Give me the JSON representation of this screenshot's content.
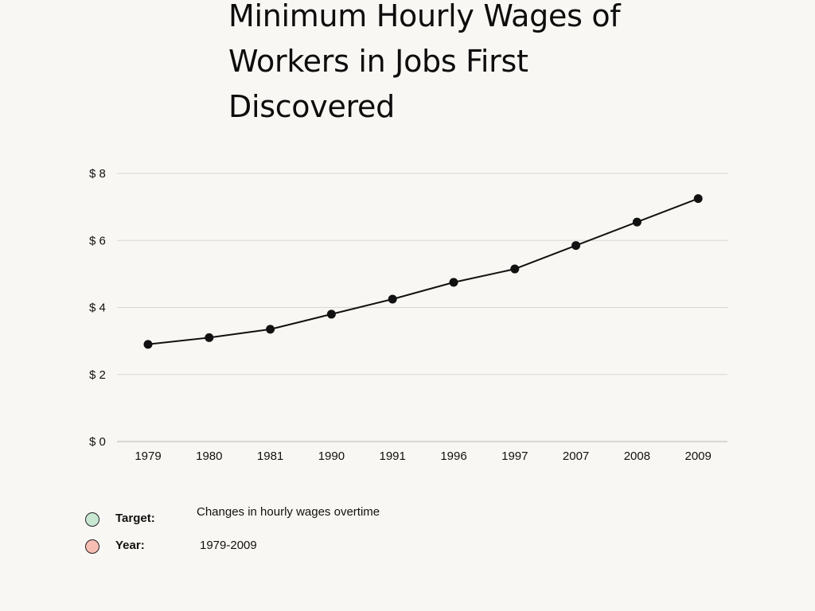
{
  "chart_data": {
    "type": "line",
    "title": "Minimum Hourly Wages of Workers in Jobs First Discovered",
    "categories": [
      "1979",
      "1980",
      "1981",
      "1990",
      "1991",
      "1996",
      "1997",
      "2007",
      "2008",
      "2009"
    ],
    "values": [
      2.9,
      3.1,
      3.35,
      3.8,
      4.25,
      4.75,
      5.15,
      5.85,
      6.55,
      7.25
    ],
    "ylim": [
      0,
      8
    ],
    "yticks": [
      0,
      2,
      4,
      6,
      8
    ],
    "ytick_labels": [
      "$ 0",
      "$ 2",
      "$ 4",
      "$ 6",
      "$ 8"
    ],
    "xlabel": "",
    "ylabel": "",
    "grid": true,
    "line_color": "#111111",
    "grid_color": "#d9d6d0"
  },
  "legend": {
    "items": [
      {
        "key": "Target:",
        "value": "Changes in hourly wages overtime",
        "color": "#c8e8d2"
      },
      {
        "key": "Year:",
        "value": "1979-2009",
        "color": "#f6bdb2"
      }
    ]
  }
}
